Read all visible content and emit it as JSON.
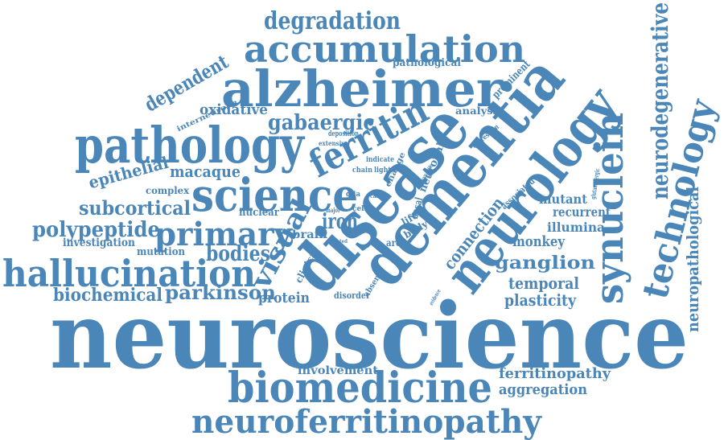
{
  "colors": {
    "text": "#4a86b8",
    "background": "#ffffff"
  },
  "words": [
    "neuroscience",
    "biomedicine",
    "neuroferritinopathy",
    "pathology",
    "science",
    "alzheimer",
    "accumulation",
    "degradation",
    "disease",
    "dementia",
    "neurology",
    "synuclein",
    "technology",
    "neurodegenerative",
    "neuropathological",
    "hallucination",
    "primary",
    "polypeptide",
    "subcortical",
    "visual",
    "iron",
    "ferritin",
    "gabaergic",
    "dependent",
    "oxidative",
    "epithelial",
    "macaque",
    "bodies",
    "parkinson",
    "biochemical",
    "protein",
    "ganglion",
    "temporal",
    "plasticity",
    "monkey",
    "illumina",
    "mutant",
    "recurrent",
    "connection",
    "ferritinopathy",
    "aggregation",
    "involvement",
    "pathological",
    "prominent",
    "analysis",
    "expression",
    "interneurone",
    "complex",
    "nuclear",
    "investigation",
    "mutation",
    "brain",
    "clinical",
    "absence",
    "disorder",
    "area",
    "body",
    "life",
    "basal",
    "neuronal",
    "associated",
    "glutamatergic",
    "cell",
    "glia",
    "change",
    "indicate",
    "chain",
    "light",
    "deposition",
    "extensive",
    "major",
    "related",
    "evidence",
    "synaptic",
    "case"
  ]
}
